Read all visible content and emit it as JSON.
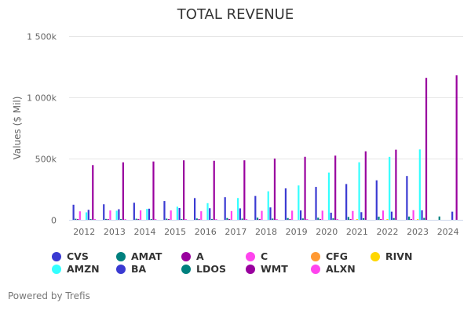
{
  "chart_data": {
    "type": "bar",
    "title": "TOTAL REVENUE",
    "xlabel": "",
    "ylabel": "Values ($ Mil)",
    "ylim": [
      0,
      1500000
    ],
    "yticks": [
      0,
      500000,
      1000000,
      1500000
    ],
    "ytick_labels": [
      "0",
      "500k",
      "1 000k",
      "1 500k"
    ],
    "grid": true,
    "legend_position": "bottom",
    "categories": [
      "2012",
      "2013",
      "2014",
      "2015",
      "2016",
      "2017",
      "2018",
      "2019",
      "2020",
      "2021",
      "2022",
      "2023",
      "2024"
    ],
    "series": [
      {
        "name": "CVS",
        "color": "#3a3ad2",
        "values": [
          123133,
          126761,
          139367,
          153290,
          177526,
          184765,
          194579,
          256776,
          268706,
          292111,
          322467,
          357776,
          null
        ]
      },
      {
        "name": "AMAT",
        "color": "#00807e",
        "values": [
          8719,
          7509,
          9072,
          9659,
          10825,
          14537,
          17253,
          14608,
          17202,
          23063,
          25785,
          26517,
          27176
        ]
      },
      {
        "name": "A",
        "color": "#99009e",
        "values": [
          6858,
          6782,
          6981,
          4038,
          4202,
          4472,
          4914,
          5163,
          5339,
          6319,
          6848,
          6833,
          null
        ]
      },
      {
        "name": "C",
        "color": "#ff44ee",
        "values": [
          69190,
          76366,
          76882,
          76354,
          69875,
          71449,
          72854,
          74286,
          74298,
          71884,
          75338,
          78462,
          null
        ]
      },
      {
        "name": "CFG",
        "color": "#ff9933",
        "values": [
          null,
          null,
          null,
          null,
          null,
          null,
          null,
          null,
          null,
          null,
          null,
          null,
          null
        ]
      },
      {
        "name": "RIVN",
        "color": "#ffd700",
        "values": [
          null,
          null,
          null,
          null,
          null,
          null,
          null,
          null,
          null,
          55,
          1658,
          4434,
          null
        ]
      },
      {
        "name": "AMZN",
        "color": "#33ffff",
        "values": [
          61093,
          74452,
          88988,
          107006,
          135987,
          177866,
          232887,
          280522,
          386064,
          469822,
          513983,
          574785,
          null
        ]
      },
      {
        "name": "BA",
        "color": "#3a3ad2",
        "values": [
          81698,
          86623,
          90762,
          96114,
          94571,
          93392,
          101127,
          76559,
          58158,
          62286,
          66608,
          77794,
          66517
        ]
      },
      {
        "name": "LDOS",
        "color": "#00807e",
        "values": [
          5771,
          5772,
          5063,
          5086,
          7043,
          10170,
          10194,
          11094,
          12297,
          13737,
          14396,
          15438,
          null
        ]
      },
      {
        "name": "WMT",
        "color": "#99009e",
        "values": [
          446950,
          469162,
          476294,
          485651,
          482130,
          485873,
          500343,
          514405,
          523964,
          559151,
          572754,
          1159000,
          1180000
        ]
      },
      {
        "name": "ALXN",
        "color": "#ff44ee",
        "values": [
          1134,
          1551,
          2234,
          2604,
          3084,
          3551,
          4131,
          4991,
          6070,
          null,
          null,
          null,
          null
        ]
      }
    ]
  },
  "legend": {
    "items": [
      {
        "label": "CVS",
        "color": "#3a3ad2"
      },
      {
        "label": "AMAT",
        "color": "#00807e"
      },
      {
        "label": "A",
        "color": "#99009e"
      },
      {
        "label": "C",
        "color": "#ff44ee"
      },
      {
        "label": "CFG",
        "color": "#ff9933"
      },
      {
        "label": "RIVN",
        "color": "#ffd700"
      },
      {
        "label": "AMZN",
        "color": "#33ffff"
      },
      {
        "label": "BA",
        "color": "#3a3ad2"
      },
      {
        "label": "LDOS",
        "color": "#00807e"
      },
      {
        "label": "WMT",
        "color": "#99009e"
      },
      {
        "label": "ALXN",
        "color": "#ff44ee"
      }
    ]
  },
  "credits": "Powered by Trefis"
}
